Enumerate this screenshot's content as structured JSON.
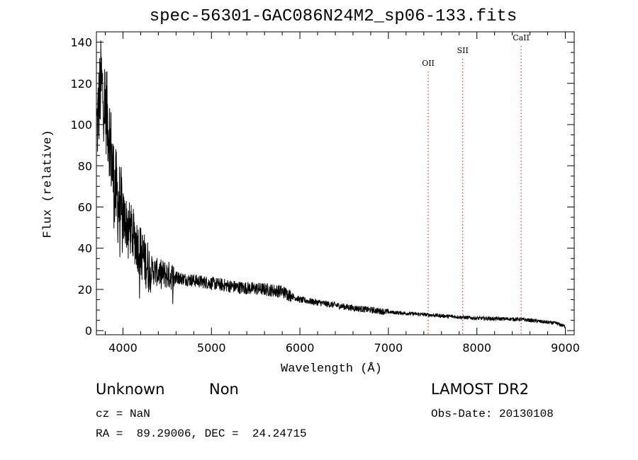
{
  "chart_data": {
    "type": "line",
    "title": "spec-56301-GAC086N24M2_sp06-133.fits",
    "xlabel": "Wavelength (Å)",
    "ylabel": "Flux (relative)",
    "xlim": [
      3700,
      9100
    ],
    "ylim": [
      -2,
      145
    ],
    "xticks": [
      4000,
      5000,
      6000,
      7000,
      8000,
      9000
    ],
    "yticks": [
      0,
      20,
      40,
      60,
      80,
      100,
      120,
      140
    ],
    "grid": false,
    "series": [
      {
        "name": "spectrum",
        "envelope": {
          "x": [
            3700,
            3750,
            3800,
            3850,
            3900,
            3950,
            4000,
            4100,
            4200,
            4300,
            4400,
            4500,
            4700,
            5000,
            5300,
            5600,
            5800,
            6000,
            6300,
            6600,
            7000,
            7500,
            8000,
            8500,
            8900,
            9000
          ],
          "y": [
            95,
            120,
            110,
            95,
            70,
            62,
            55,
            48,
            38,
            30,
            28,
            27,
            25,
            23,
            21,
            20,
            19,
            15,
            13,
            11,
            9,
            7.5,
            6,
            5.5,
            3.5,
            2
          ]
        }
      }
    ],
    "annotations": [
      {
        "label": "OII",
        "x": 7450
      },
      {
        "label": "SII",
        "x": 7840
      },
      {
        "label": "CaII",
        "x": 8500
      }
    ]
  },
  "info": {
    "class": "Unknown",
    "subclass": "Non",
    "survey": "LAMOST DR2",
    "cz": "cz = NaN",
    "obs_date": "Obs-Date: 20130108",
    "coords": "RA =  89.29006, DEC =  24.24715"
  },
  "colors": {
    "line": "#000000",
    "annotation": "#ff0000",
    "background": "#ffffff"
  }
}
